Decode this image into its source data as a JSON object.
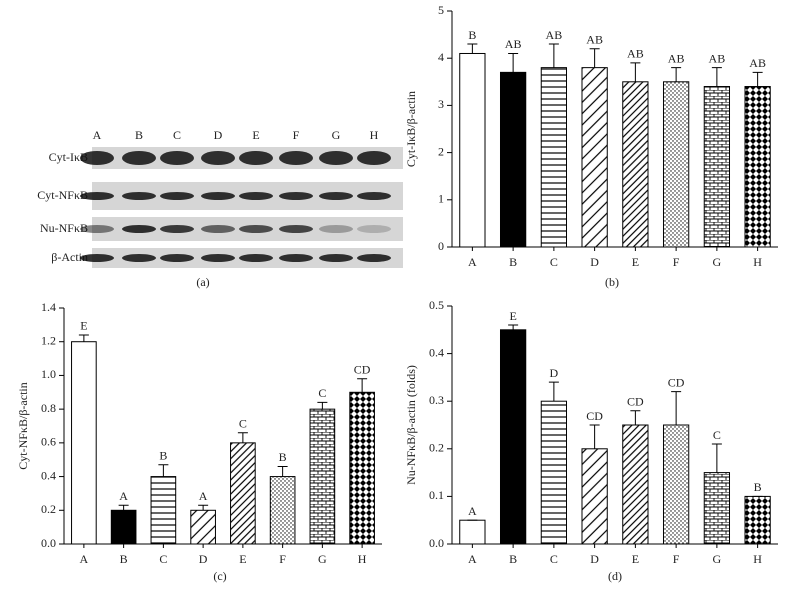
{
  "blot": {
    "lanes": [
      "A",
      "B",
      "C",
      "D",
      "E",
      "F",
      "G",
      "H"
    ],
    "rows": [
      "Cyt-IκB",
      "Cyt-NFκB",
      "Nu-NFκB",
      "β-Actin"
    ],
    "caption": "(a)"
  },
  "chart_data": [
    {
      "type": "bar",
      "caption": "(b)",
      "ylabel": "Cyt-IκB/β-actin",
      "categories": [
        "A",
        "B",
        "C",
        "D",
        "E",
        "F",
        "G",
        "H"
      ],
      "values": [
        4.1,
        3.7,
        3.8,
        3.8,
        3.5,
        3.5,
        3.4,
        3.4
      ],
      "errors": [
        0.2,
        0.4,
        0.5,
        0.4,
        0.4,
        0.3,
        0.4,
        0.3
      ],
      "letters": [
        "B",
        "AB",
        "AB",
        "AB",
        "AB",
        "AB",
        "AB",
        "AB"
      ],
      "patterns": [
        "white",
        "black",
        "hlines",
        "diag",
        "diag-dense",
        "dots",
        "brick",
        "checker"
      ],
      "ylim": [
        0,
        5
      ],
      "yticks": [
        0,
        1,
        2,
        3,
        4,
        5
      ]
    },
    {
      "type": "bar",
      "caption": "(c)",
      "ylabel": "Cyt-NFκB/β-actin",
      "categories": [
        "A",
        "B",
        "C",
        "D",
        "E",
        "F",
        "G",
        "H"
      ],
      "values": [
        1.2,
        0.2,
        0.4,
        0.2,
        0.6,
        0.4,
        0.8,
        0.9
      ],
      "errors": [
        0.04,
        0.03,
        0.07,
        0.03,
        0.06,
        0.06,
        0.04,
        0.08
      ],
      "letters": [
        "E",
        "A",
        "B",
        "A",
        "C",
        "B",
        "C",
        "CD"
      ],
      "patterns": [
        "white",
        "black",
        "hlines",
        "diag",
        "diag-dense",
        "dots",
        "brick",
        "checker"
      ],
      "ylim": [
        0,
        1.4
      ],
      "yticks": [
        {
          "value": 0,
          "label": "0.0"
        },
        0.2,
        0.4,
        0.6,
        0.8,
        {
          "value": 1,
          "label": "1.0"
        },
        1.2,
        1.4
      ]
    },
    {
      "type": "bar",
      "caption": "(d)",
      "ylabel": "Nu-NFκB/β-actin (folds)",
      "categories": [
        "A",
        "B",
        "C",
        "D",
        "E",
        "F",
        "G",
        "H"
      ],
      "values": [
        0.05,
        0.45,
        0.3,
        0.2,
        0.25,
        0.25,
        0.15,
        0.1
      ],
      "errors": [
        0,
        0.01,
        0.04,
        0.05,
        0.03,
        0.07,
        0.06,
        0
      ],
      "letters": [
        "A",
        "E",
        "D",
        "CD",
        "CD",
        "CD",
        "C",
        "B"
      ],
      "patterns": [
        "white",
        "black",
        "hlines",
        "diag",
        "diag-dense",
        "dots",
        "brick",
        "checker"
      ],
      "ylim": [
        0,
        0.5
      ],
      "yticks": [
        {
          "value": 0,
          "label": "0.0"
        },
        0.1,
        0.2,
        0.3,
        0.4,
        0.5
      ]
    }
  ]
}
